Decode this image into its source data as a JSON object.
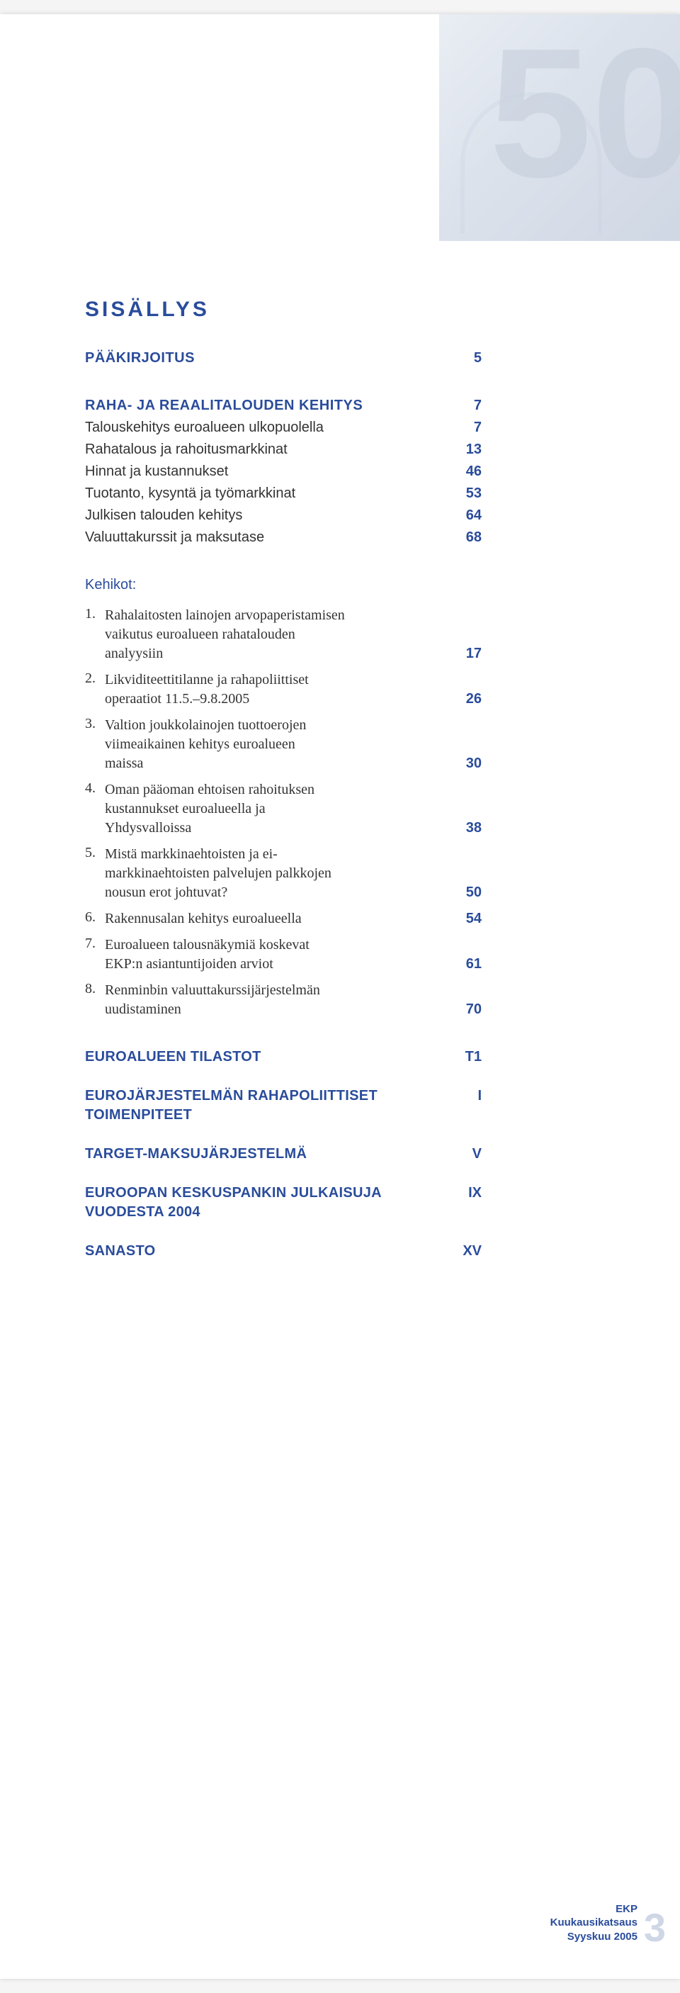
{
  "title": "SISÄLLYS",
  "sections": [
    {
      "type": "heading",
      "label": "PÄÄKIRJOITUS",
      "page": "5"
    },
    {
      "type": "spacer-lg"
    },
    {
      "type": "heading",
      "label": "RAHA- JA REAALITALOUDEN KEHITYS",
      "page": "7"
    },
    {
      "type": "sub",
      "label": "Talouskehitys euroalueen ulkopuolella",
      "page": "7"
    },
    {
      "type": "sub",
      "label": "Rahatalous ja rahoitusmarkkinat",
      "page": "13"
    },
    {
      "type": "sub",
      "label": "Hinnat ja kustannukset",
      "page": "46"
    },
    {
      "type": "sub",
      "label": "Tuotanto, kysyntä ja työmarkkinat",
      "page": "53"
    },
    {
      "type": "sub",
      "label": "Julkisen talouden kehitys",
      "page": "64"
    },
    {
      "type": "sub",
      "label": "Valuuttakurssit ja maksutase",
      "page": "68"
    }
  ],
  "kehikot_title": "Kehikot:",
  "kehikot": [
    {
      "num": "1.",
      "lines": [
        "Rahalaitosten lainojen arvopaperistamisen",
        "vaikutus euroalueen rahatalouden",
        "analyysiin"
      ],
      "page": "17"
    },
    {
      "num": "2.",
      "lines": [
        "Likviditeettitilanne ja rahapoliittiset",
        "operaatiot 11.5.–9.8.2005"
      ],
      "page": "26"
    },
    {
      "num": "3.",
      "lines": [
        "Valtion joukkolainojen tuottoerojen",
        "viimeaikainen kehitys euroalueen",
        "maissa"
      ],
      "page": "30"
    },
    {
      "num": "4.",
      "lines": [
        "Oman pääoman ehtoisen rahoituksen",
        "kustannukset euroalueella ja",
        "Yhdysvalloissa"
      ],
      "page": "38"
    },
    {
      "num": "5.",
      "lines": [
        "Mistä markkinaehtoisten ja ei-",
        "markkinaehtoisten palvelujen palkkojen",
        "nousun erot johtuvat?"
      ],
      "page": "50"
    },
    {
      "num": "6.",
      "lines": [
        "Rakennusalan kehitys euroalueella"
      ],
      "page": "54"
    },
    {
      "num": "7.",
      "lines": [
        "Euroalueen talousnäkymiä koskevat",
        "EKP:n asiantuntijoiden arviot"
      ],
      "page": "61"
    },
    {
      "num": "8.",
      "lines": [
        "Renminbin valuuttakurssijärjestelmän",
        "uudistaminen"
      ],
      "page": "70"
    }
  ],
  "bottom": [
    {
      "label": "EUROALUEEN TILASTOT",
      "page": "T1"
    },
    {
      "label": "EUROJÄRJESTELMÄN RAHAPOLIITTISET TOIMENPITEET",
      "page": "I"
    },
    {
      "label": "TARGET-MAKSUJÄRJESTELMÄ",
      "page": "V"
    },
    {
      "label": "EUROOPAN KESKUSPANKIN JULKAISUJA VUODESTA 2004",
      "page": "IX"
    },
    {
      "label": "SANASTO",
      "page": "XV"
    }
  ],
  "footer": {
    "l1": "EKP",
    "l2": "Kuukausikatsaus",
    "l3": "Syyskuu 2005",
    "pagenum": "3"
  }
}
